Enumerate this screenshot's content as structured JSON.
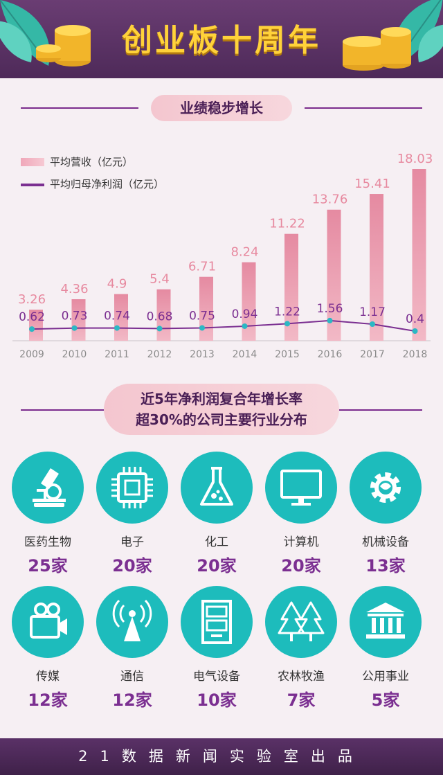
{
  "header": {
    "title": "创业板十周年"
  },
  "section1": {
    "title": "业绩稳步增长"
  },
  "section2": {
    "title_line1": "近5年净利润复合年增长率",
    "title_line2": "超30%的公司主要行业分布"
  },
  "chart_data": {
    "type": "bar",
    "categories": [
      "2009",
      "2010",
      "2011",
      "2012",
      "2013",
      "2014",
      "2015",
      "2016",
      "2017",
      "2018"
    ],
    "series": [
      {
        "name": "平均营收（亿元）",
        "type": "bar",
        "values": [
          3.26,
          4.36,
          4.9,
          5.4,
          6.71,
          8.24,
          11.22,
          13.76,
          15.41,
          18.03
        ],
        "color": "#eb8fa6"
      },
      {
        "name": "平均归母净利润（亿元）",
        "type": "line",
        "values": [
          0.62,
          0.73,
          0.74,
          0.68,
          0.75,
          0.94,
          1.22,
          1.56,
          1.17,
          0.4
        ],
        "color": "#7b2f91"
      }
    ],
    "legend": "top-left",
    "grid": false
  },
  "industries": [
    {
      "name": "医药生物",
      "count": "25家",
      "icon": "microscope-icon"
    },
    {
      "name": "电子",
      "count": "20家",
      "icon": "chip-icon"
    },
    {
      "name": "化工",
      "count": "20家",
      "icon": "flask-icon"
    },
    {
      "name": "计算机",
      "count": "20家",
      "icon": "monitor-icon"
    },
    {
      "name": "机械设备",
      "count": "13家",
      "icon": "gear-icon"
    },
    {
      "name": "传媒",
      "count": "12家",
      "icon": "video-camera-icon"
    },
    {
      "name": "通信",
      "count": "12家",
      "icon": "antenna-icon"
    },
    {
      "name": "电气设备",
      "count": "10家",
      "icon": "electrical-cabinet-icon"
    },
    {
      "name": "农林牧渔",
      "count": "7家",
      "icon": "trees-icon"
    },
    {
      "name": "公用事业",
      "count": "5家",
      "icon": "building-icon"
    }
  ],
  "footer": {
    "text": "21数据新闻实验室出品"
  },
  "colors": {
    "teal": "#1dbcbc",
    "purple": "#7b2f91",
    "pink": "#eb8fa6",
    "gold": "#ffd23a"
  }
}
